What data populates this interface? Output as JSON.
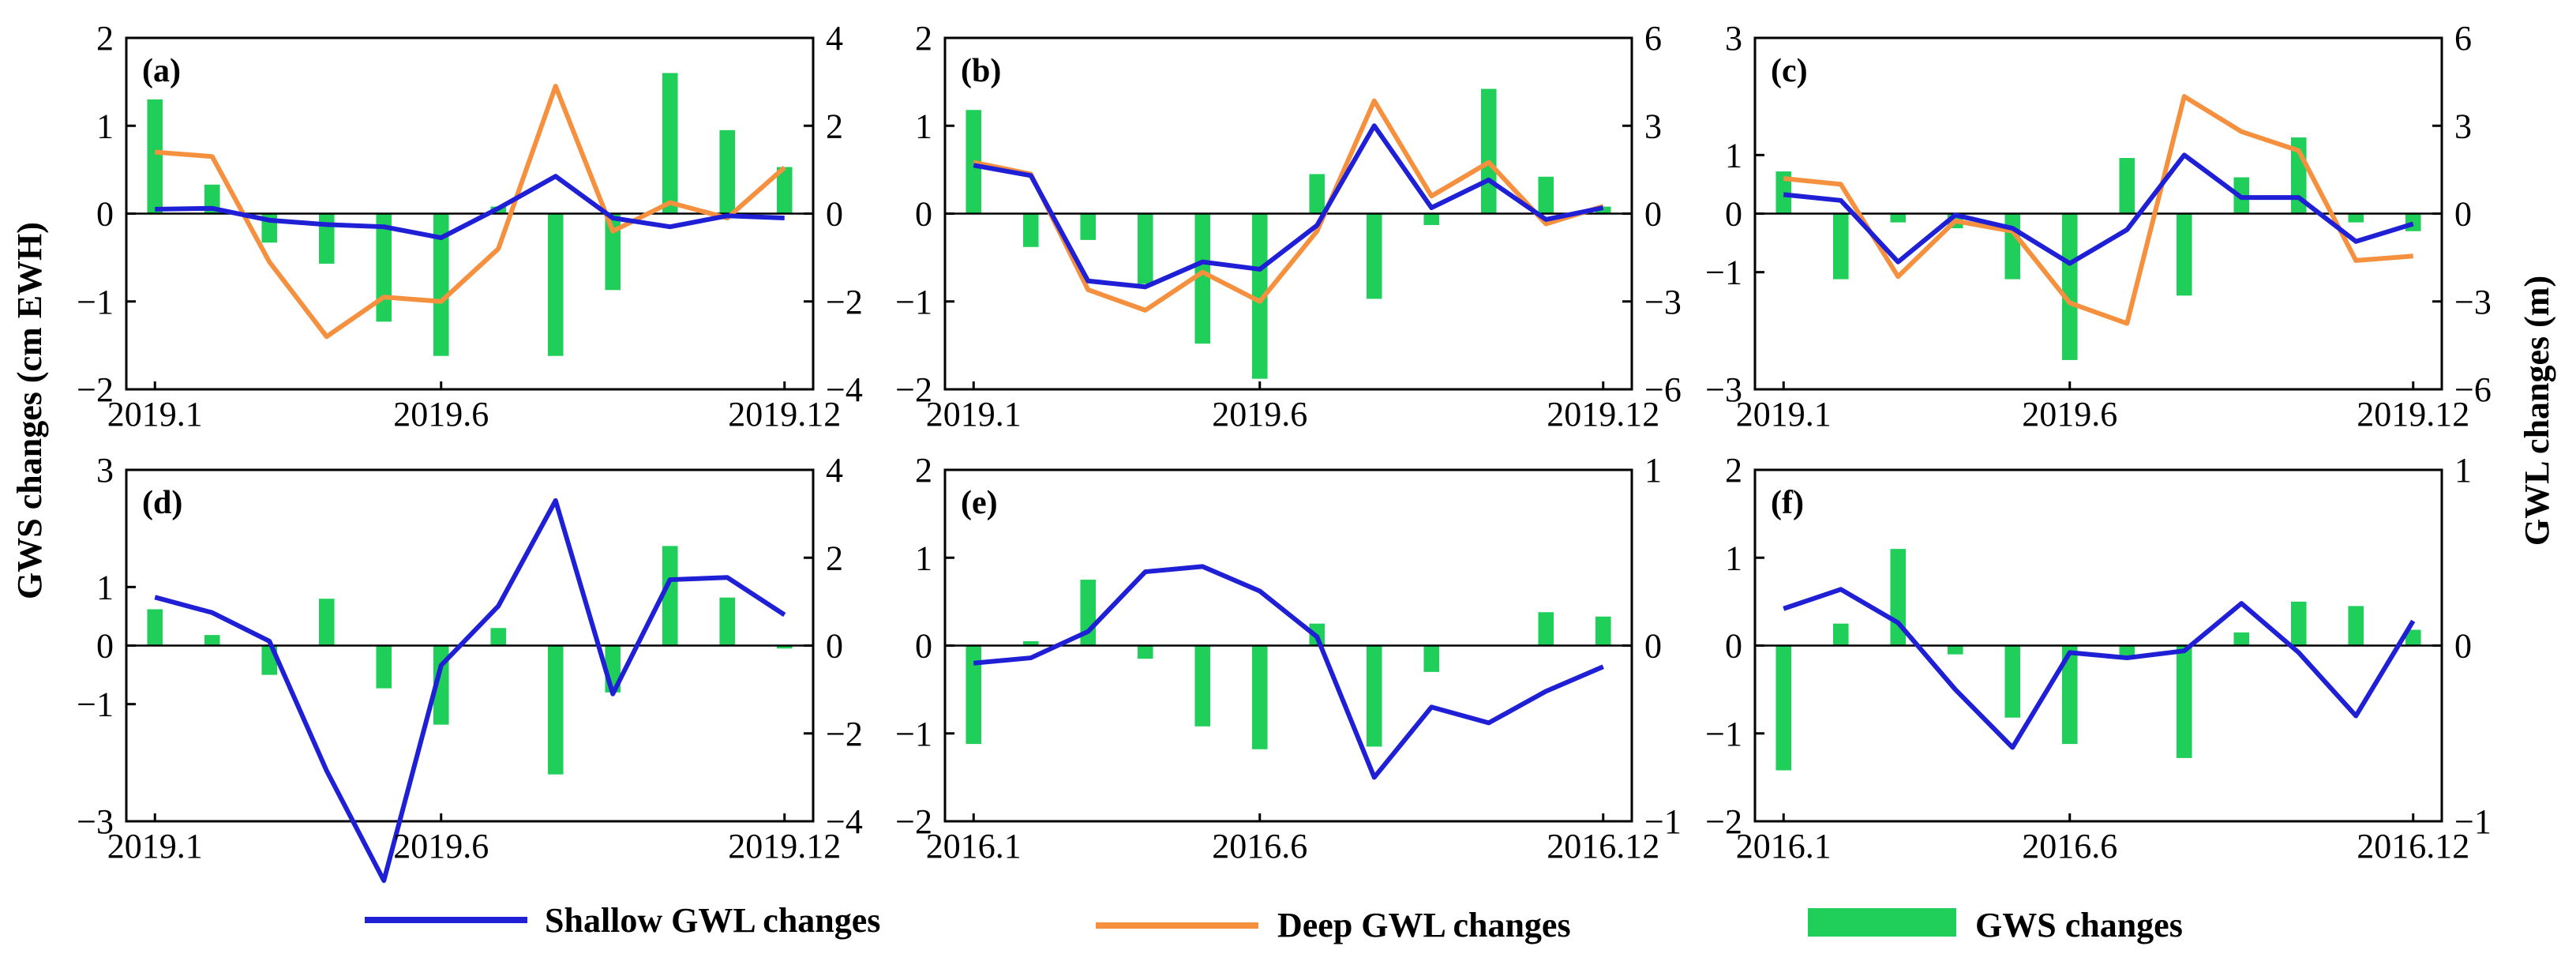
{
  "figure": {
    "y_left_title": "GWS changes (cm EWH)",
    "y_right_title": "GWL changes (m)"
  },
  "legend": {
    "shallow": "Shallow GWL changes",
    "deep": "Deep GWL changes",
    "gws": "GWS changes"
  },
  "colors": {
    "shallow": "#1f1fd6",
    "deep": "#f5903f",
    "gws": "#1fcf5a"
  },
  "chart_data": [
    {
      "label": "(a)",
      "type": "bar+line",
      "xticks": [
        "2019.1",
        "2019.6",
        "2019.12"
      ],
      "left_ylim": [
        -2,
        2
      ],
      "left_ticks": [
        "2",
        "1",
        "0",
        "−1",
        "−2"
      ],
      "left_tick_values": [
        2,
        1,
        0,
        -1,
        -2
      ],
      "right_ylim": [
        -4,
        4
      ],
      "right_ticks": [
        "4",
        "2",
        "0",
        "−2",
        "−4"
      ],
      "right_tick_values": [
        4,
        2,
        0,
        -2,
        -4
      ],
      "gws": [
        1.3,
        0.33,
        -0.33,
        -0.57,
        -1.23,
        -1.62,
        0.08,
        -1.62,
        -0.87,
        1.6,
        0.95,
        0.53
      ],
      "shallow": [
        0.1,
        0.12,
        -0.15,
        -0.25,
        -0.3,
        -0.55,
        0.12,
        0.85,
        -0.1,
        -0.3,
        -0.05,
        -0.1
      ],
      "deep": [
        1.4,
        1.3,
        -1.1,
        -2.8,
        -1.9,
        -2.0,
        -0.8,
        2.9,
        -0.4,
        0.25,
        -0.1,
        1.05
      ]
    },
    {
      "label": "(b)",
      "type": "bar+line",
      "xticks": [
        "2019.1",
        "2019.6",
        "2019.12"
      ],
      "left_ylim": [
        -2,
        2
      ],
      "left_ticks": [
        "2",
        "1",
        "0",
        "−1",
        "−2"
      ],
      "left_tick_values": [
        2,
        1,
        0,
        -1,
        -2
      ],
      "right_ylim": [
        -6,
        6
      ],
      "right_ticks": [
        "6",
        "3",
        "0",
        "−3",
        "−6"
      ],
      "right_tick_values": [
        6,
        3,
        0,
        -3,
        -6
      ],
      "gws": [
        1.18,
        -0.38,
        -0.3,
        -0.8,
        -1.48,
        -1.88,
        0.45,
        -0.97,
        -0.13,
        1.42,
        0.42,
        0.08
      ],
      "shallow": [
        1.65,
        1.3,
        -2.3,
        -2.5,
        -1.65,
        -1.9,
        -0.4,
        3.0,
        0.2,
        1.15,
        -0.2,
        0.2
      ],
      "deep": [
        1.75,
        1.35,
        -2.6,
        -3.3,
        -2.0,
        -3.0,
        -0.6,
        3.85,
        0.6,
        1.75,
        -0.35,
        0.25
      ]
    },
    {
      "label": "(c)",
      "type": "bar+line",
      "xticks": [
        "2019.1",
        "2019.6",
        "2019.12"
      ],
      "left_ylim": [
        -3,
        3
      ],
      "left_ticks": [
        "3",
        "1",
        "0",
        "−1",
        "−3"
      ],
      "left_tick_values": [
        3,
        1,
        0,
        -1,
        -3
      ],
      "right_ylim": [
        -6,
        6
      ],
      "right_ticks": [
        "6",
        "3",
        "0",
        "−3",
        "−6"
      ],
      "right_tick_values": [
        6,
        3,
        0,
        -3,
        -6
      ],
      "gws": [
        0.72,
        -1.12,
        -0.15,
        -0.25,
        -1.12,
        -2.5,
        0.95,
        -1.4,
        0.62,
        1.3,
        -0.15,
        -0.3
      ],
      "shallow": [
        0.65,
        0.45,
        -1.65,
        -0.05,
        -0.5,
        -1.7,
        -0.55,
        2.0,
        0.55,
        0.55,
        -0.95,
        -0.35
      ],
      "deep": [
        1.2,
        1.0,
        -2.15,
        -0.25,
        -0.6,
        -3.05,
        -3.75,
        4.0,
        2.8,
        2.15,
        -1.6,
        -1.45
      ]
    },
    {
      "label": "(d)",
      "type": "bar+line",
      "xticks": [
        "2019.1",
        "2019.6",
        "2019.12"
      ],
      "left_ylim": [
        -3,
        3
      ],
      "left_ticks": [
        "3",
        "1",
        "0",
        "−1",
        "−3"
      ],
      "left_tick_values": [
        3,
        1,
        0,
        -1,
        -3
      ],
      "right_ylim": [
        -4,
        4
      ],
      "right_ticks": [
        "4",
        "2",
        "0",
        "−2",
        "−4"
      ],
      "right_tick_values": [
        4,
        2,
        0,
        -2,
        -4
      ],
      "gws": [
        0.62,
        0.18,
        -0.5,
        0.8,
        -0.73,
        -1.35,
        0.3,
        -2.2,
        -0.8,
        1.7,
        0.82,
        -0.05
      ],
      "shallow": [
        1.1,
        0.75,
        0.1,
        -2.85,
        -5.35,
        -0.45,
        0.9,
        3.3,
        -1.1,
        1.5,
        1.55,
        0.7
      ],
      "deep": []
    },
    {
      "label": "(e)",
      "type": "bar+line",
      "xticks": [
        "2016.1",
        "2016.6",
        "2016.12"
      ],
      "left_ylim": [
        -2,
        2
      ],
      "left_ticks": [
        "2",
        "1",
        "0",
        "−1",
        "−2"
      ],
      "left_tick_values": [
        2,
        1,
        0,
        -1,
        -2
      ],
      "right_ylim": [
        -1,
        1
      ],
      "right_ticks": [
        "1",
        "0",
        "−1"
      ],
      "right_tick_values": [
        1,
        0,
        -1
      ],
      "gws": [
        -1.12,
        0.05,
        0.75,
        -0.15,
        -0.92,
        -1.18,
        0.25,
        -1.15,
        -0.3,
        0.0,
        0.38,
        0.33
      ],
      "shallow": [
        -0.1,
        -0.07,
        0.08,
        0.42,
        0.45,
        0.31,
        0.05,
        -0.75,
        -0.35,
        -0.44,
        -0.26,
        -0.12
      ],
      "deep": []
    },
    {
      "label": "(f)",
      "type": "bar+line",
      "xticks": [
        "2016.1",
        "2016.6",
        "2016.12"
      ],
      "left_ylim": [
        -2,
        2
      ],
      "left_ticks": [
        "2",
        "1",
        "0",
        "−1",
        "−2"
      ],
      "left_tick_values": [
        2,
        1,
        0,
        -1,
        -2
      ],
      "right_ylim": [
        -1,
        1
      ],
      "right_ticks": [
        "1",
        "0",
        "−1"
      ],
      "right_tick_values": [
        1,
        0,
        -1
      ],
      "gws": [
        -1.42,
        0.25,
        1.1,
        -0.1,
        -0.82,
        -1.12,
        -0.12,
        -1.28,
        0.15,
        0.5,
        0.45,
        0.18
      ],
      "shallow": [
        0.21,
        0.32,
        0.13,
        -0.25,
        -0.58,
        -0.04,
        -0.07,
        -0.03,
        0.24,
        -0.04,
        -0.4,
        0.14
      ],
      "deep": []
    }
  ]
}
